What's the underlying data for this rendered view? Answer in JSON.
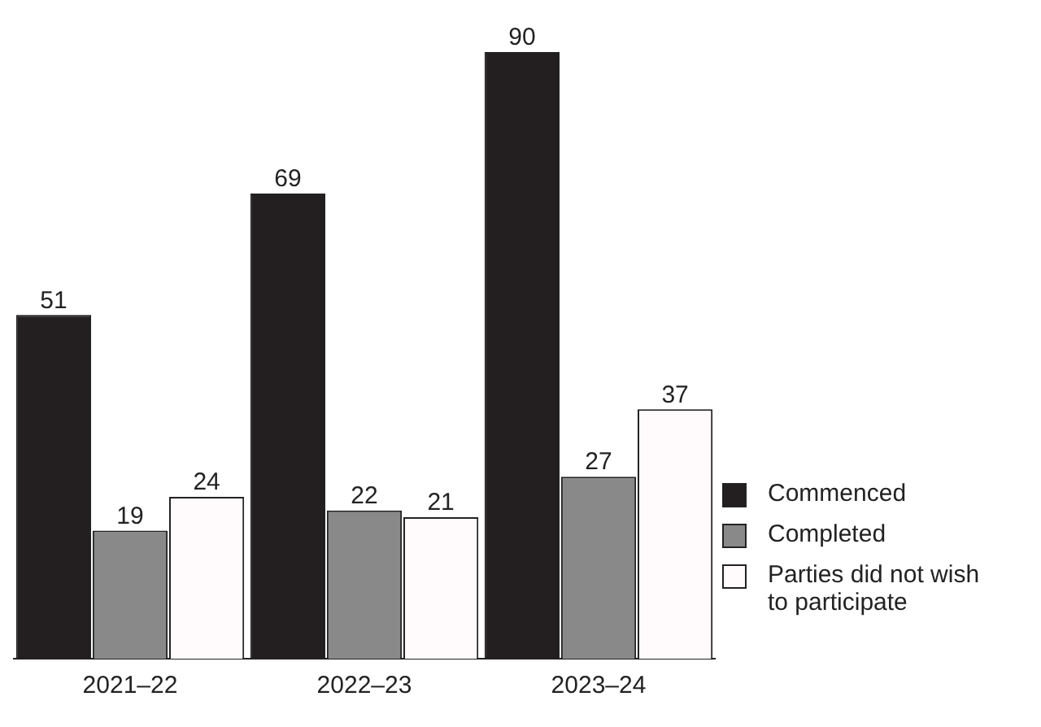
{
  "chart_data": {
    "type": "bar",
    "categories": [
      "2021–22",
      "2022–23",
      "2023–24"
    ],
    "series": [
      {
        "name": "Commenced",
        "color": "#231f20",
        "values": [
          51,
          69,
          90
        ]
      },
      {
        "name": "Completed",
        "color": "#898989",
        "values": [
          19,
          22,
          27
        ]
      },
      {
        "name": "Parties did not wish to participate",
        "color": "#fffafc",
        "values": [
          24,
          21,
          37
        ]
      }
    ],
    "data_labels": true,
    "legend": "right",
    "grid": false
  }
}
